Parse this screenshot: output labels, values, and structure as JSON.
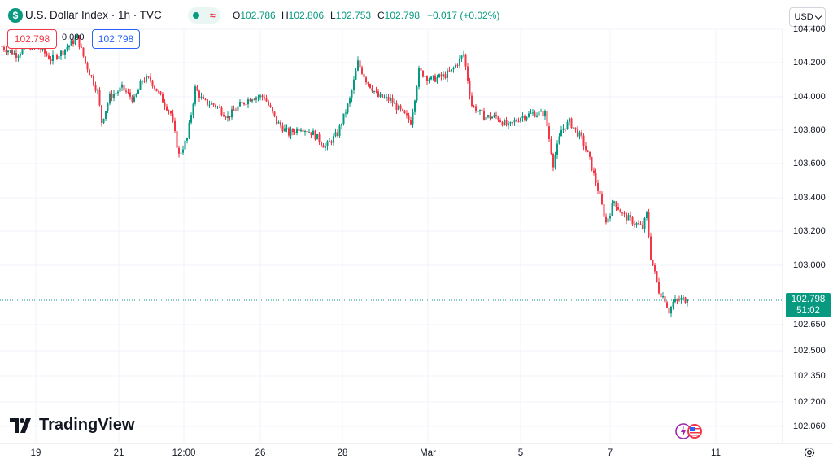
{
  "header": {
    "symbol_icon": "$",
    "title": "U.S. Dollar Index · 1h · TVC",
    "status_wave": "≈",
    "ohlc": [
      {
        "key": "O",
        "value": "102.786"
      },
      {
        "key": "H",
        "value": "102.806"
      },
      {
        "key": "L",
        "value": "102.753"
      },
      {
        "key": "C",
        "value": "102.798"
      },
      {
        "key": "",
        "value": "+0.017 (+0.02%)"
      }
    ],
    "sell_price": "102.798",
    "spread": "0.000",
    "buy_price": "102.798",
    "currency": "USD"
  },
  "colors": {
    "up": "#089981",
    "down": "#f23645",
    "grid": "#f0f3fa",
    "buy": "#2962ff",
    "text": "#131722"
  },
  "chart_data": {
    "type": "candlestick",
    "title": "U.S. Dollar Index · 1h · TVC",
    "last_price": "102.798",
    "countdown": "51:02",
    "y_ticks": [
      {
        "label": "104.400",
        "value": 104.4
      },
      {
        "label": "104.200",
        "value": 104.2
      },
      {
        "label": "104.000",
        "value": 104.0
      },
      {
        "label": "103.800",
        "value": 103.8
      },
      {
        "label": "103.600",
        "value": 103.6
      },
      {
        "label": "103.400",
        "value": 103.4
      },
      {
        "label": "103.200",
        "value": 103.2
      },
      {
        "label": "103.000",
        "value": 103.0
      },
      {
        "label": "102.650",
        "value": 102.65
      },
      {
        "label": "102.500",
        "value": 102.5
      },
      {
        "label": "102.350",
        "value": 102.35
      },
      {
        "label": "102.200",
        "value": 102.2
      },
      {
        "label": "102.060",
        "value": 102.06
      }
    ],
    "x_ticks": [
      "19",
      "21",
      "12:00",
      "26",
      "28",
      "Mar",
      "5",
      "7",
      "11"
    ],
    "close_path": [
      {
        "t": 0,
        "v": 104.3
      },
      {
        "t": 8,
        "v": 104.25
      },
      {
        "t": 14,
        "v": 104.3
      },
      {
        "t": 20,
        "v": 104.28
      },
      {
        "t": 25,
        "v": 104.22
      },
      {
        "t": 30,
        "v": 104.26
      },
      {
        "t": 38,
        "v": 104.35
      },
      {
        "t": 42,
        "v": 104.2
      },
      {
        "t": 48,
        "v": 104.03
      },
      {
        "t": 50,
        "v": 103.85
      },
      {
        "t": 54,
        "v": 104.0
      },
      {
        "t": 60,
        "v": 104.05
      },
      {
        "t": 66,
        "v": 103.98
      },
      {
        "t": 70,
        "v": 104.1
      },
      {
        "t": 74,
        "v": 104.1
      },
      {
        "t": 78,
        "v": 104.02
      },
      {
        "t": 84,
        "v": 103.9
      },
      {
        "t": 88,
        "v": 103.65
      },
      {
        "t": 92,
        "v": 103.75
      },
      {
        "t": 96,
        "v": 104.05
      },
      {
        "t": 100,
        "v": 103.97
      },
      {
        "t": 106,
        "v": 103.95
      },
      {
        "t": 112,
        "v": 103.88
      },
      {
        "t": 118,
        "v": 103.95
      },
      {
        "t": 124,
        "v": 104.0
      },
      {
        "t": 130,
        "v": 104.0
      },
      {
        "t": 136,
        "v": 103.85
      },
      {
        "t": 142,
        "v": 103.78
      },
      {
        "t": 148,
        "v": 103.82
      },
      {
        "t": 154,
        "v": 103.78
      },
      {
        "t": 160,
        "v": 103.7
      },
      {
        "t": 166,
        "v": 103.78
      },
      {
        "t": 172,
        "v": 103.98
      },
      {
        "t": 176,
        "v": 104.2
      },
      {
        "t": 180,
        "v": 104.1
      },
      {
        "t": 186,
        "v": 104.0
      },
      {
        "t": 192,
        "v": 103.98
      },
      {
        "t": 198,
        "v": 103.9
      },
      {
        "t": 202,
        "v": 103.85
      },
      {
        "t": 206,
        "v": 104.15
      },
      {
        "t": 212,
        "v": 104.1
      },
      {
        "t": 218,
        "v": 104.12
      },
      {
        "t": 222,
        "v": 104.15
      },
      {
        "t": 228,
        "v": 104.25
      },
      {
        "t": 232,
        "v": 103.95
      },
      {
        "t": 238,
        "v": 103.88
      },
      {
        "t": 244,
        "v": 103.88
      },
      {
        "t": 250,
        "v": 103.82
      },
      {
        "t": 256,
        "v": 103.88
      },
      {
        "t": 262,
        "v": 103.9
      },
      {
        "t": 268,
        "v": 103.9
      },
      {
        "t": 272,
        "v": 103.6
      },
      {
        "t": 276,
        "v": 103.8
      },
      {
        "t": 280,
        "v": 103.85
      },
      {
        "t": 286,
        "v": 103.75
      },
      {
        "t": 290,
        "v": 103.62
      },
      {
        "t": 294,
        "v": 103.45
      },
      {
        "t": 298,
        "v": 103.25
      },
      {
        "t": 302,
        "v": 103.38
      },
      {
        "t": 306,
        "v": 103.3
      },
      {
        "t": 312,
        "v": 103.25
      },
      {
        "t": 316,
        "v": 103.22
      },
      {
        "t": 318,
        "v": 103.3
      },
      {
        "t": 320,
        "v": 103.05
      },
      {
        "t": 324,
        "v": 102.85
      },
      {
        "t": 327,
        "v": 102.8
      },
      {
        "t": 329,
        "v": 102.73
      },
      {
        "t": 331,
        "v": 102.78
      },
      {
        "t": 335,
        "v": 102.8
      },
      {
        "t": 338,
        "v": 102.798
      }
    ]
  },
  "branding": {
    "logo_text": "TradingView"
  }
}
